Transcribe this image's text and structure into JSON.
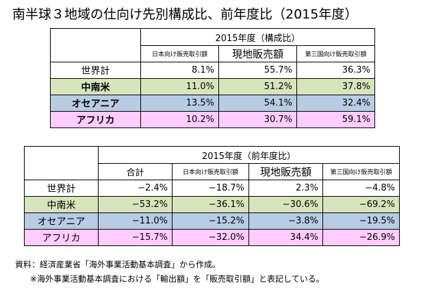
{
  "title": "南半球３地域の仕向け先別構成比、前年度比（2015年度）",
  "table1": {
    "group_header": "2015年度（構成比）",
    "columns": [
      "日本向け販売取引額",
      "現地販売額",
      "第三国向け販売取引額"
    ],
    "rows": [
      {
        "label": "世界計",
        "values": [
          "8.1%",
          "55.7%",
          "36.3%"
        ]
      },
      {
        "label": "中南米",
        "values": [
          "11.0%",
          "51.2%",
          "37.8%"
        ]
      },
      {
        "label": "オセアニア",
        "values": [
          "13.5%",
          "54.1%",
          "32.4%"
        ]
      },
      {
        "label": "アフリカ",
        "values": [
          "10.2%",
          "30.7%",
          "59.1%"
        ]
      }
    ]
  },
  "table2": {
    "group_header": "2015年度（前年度比）",
    "columns": [
      "合計",
      "日本向け販売取引額",
      "現地販売額",
      "第三国向け販売取引額"
    ],
    "rows": [
      {
        "label": "世界計",
        "values": [
          "−2.4%",
          "−18.7%",
          "2.3%",
          "−4.8%"
        ]
      },
      {
        "label": "中南米",
        "values": [
          "−53.2%",
          "−36.1%",
          "−30.6%",
          "−69.2%"
        ]
      },
      {
        "label": "オセアニア",
        "values": [
          "−11.0%",
          "−15.2%",
          "−3.8%",
          "−19.5%"
        ]
      },
      {
        "label": "アフリカ",
        "values": [
          "−15.7%",
          "−32.0%",
          "34.4%",
          "−26.9%"
        ]
      }
    ]
  },
  "source": "資料：経済産業省「海外事業活動基本調査」から作成。",
  "note": "※海外事業活動基本調査における「輸出額」を「販売取引額」と表記している。",
  "colors": {
    "green": "#d8e4bc",
    "blue": "#b8cce4",
    "pink": "#ffccff"
  }
}
